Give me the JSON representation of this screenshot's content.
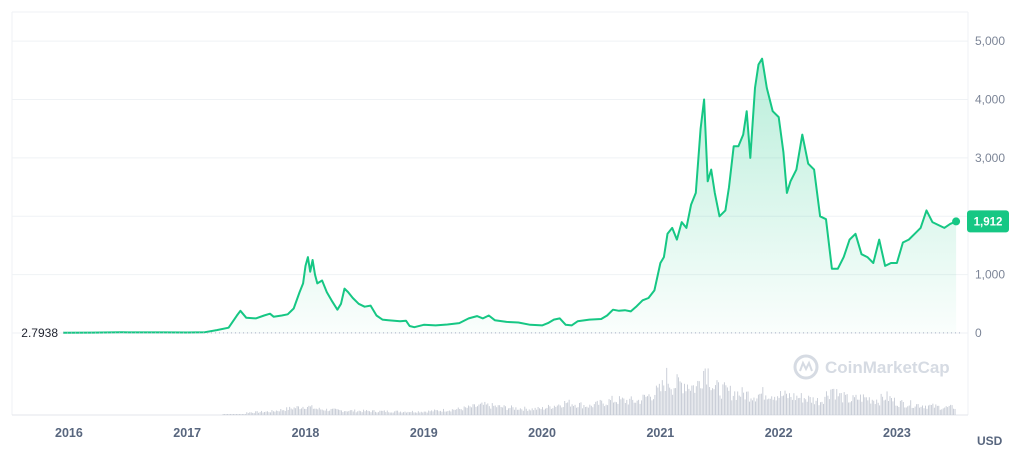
{
  "chart_data": {
    "type": "area",
    "title": "",
    "xlabel": "",
    "ylabel": "",
    "unit": "USD",
    "ylim": [
      0,
      5500
    ],
    "y_ticks": [
      0,
      1000,
      2000,
      3000,
      4000,
      5000
    ],
    "y_tick_labels": [
      "0",
      "1,000",
      "2,000",
      "3,000",
      "4,000",
      "5,000"
    ],
    "xlim": [
      2015.95,
      2023.55
    ],
    "x_ticks": [
      2016,
      2017,
      2018,
      2019,
      2020,
      2021,
      2022,
      2023
    ],
    "x_tick_labels": [
      "2016",
      "2017",
      "2018",
      "2019",
      "2020",
      "2021",
      "2022",
      "2023"
    ],
    "start_value_label": "2.7938",
    "start_value": 2.7938,
    "current_value": 1912,
    "current_value_label": "1,912",
    "grid": true,
    "watermark": "CoinMarketCap",
    "colors": {
      "line": "#16c784",
      "area_top": "#16c784",
      "badge": "#16c784",
      "volume": "#c5cad4",
      "grid": "#eff2f5",
      "tick": "#58667e"
    },
    "series": [
      {
        "points": [
          [
            2015.95,
            2.8
          ],
          [
            2016.2,
            6
          ],
          [
            2016.45,
            12
          ],
          [
            2016.6,
            11
          ],
          [
            2016.8,
            10
          ],
          [
            2017.0,
            8
          ],
          [
            2017.15,
            13
          ],
          [
            2017.25,
            50
          ],
          [
            2017.35,
            90
          ],
          [
            2017.42,
            300
          ],
          [
            2017.45,
            380
          ],
          [
            2017.5,
            260
          ],
          [
            2017.58,
            250
          ],
          [
            2017.65,
            300
          ],
          [
            2017.7,
            330
          ],
          [
            2017.73,
            280
          ],
          [
            2017.8,
            300
          ],
          [
            2017.85,
            320
          ],
          [
            2017.9,
            420
          ],
          [
            2017.95,
            700
          ],
          [
            2017.98,
            850
          ],
          [
            2018.0,
            1150
          ],
          [
            2018.02,
            1300
          ],
          [
            2018.04,
            1050
          ],
          [
            2018.06,
            1250
          ],
          [
            2018.08,
            1000
          ],
          [
            2018.1,
            850
          ],
          [
            2018.14,
            900
          ],
          [
            2018.18,
            700
          ],
          [
            2018.22,
            560
          ],
          [
            2018.27,
            400
          ],
          [
            2018.3,
            500
          ],
          [
            2018.33,
            760
          ],
          [
            2018.36,
            700
          ],
          [
            2018.4,
            600
          ],
          [
            2018.45,
            500
          ],
          [
            2018.5,
            450
          ],
          [
            2018.55,
            470
          ],
          [
            2018.6,
            300
          ],
          [
            2018.65,
            230
          ],
          [
            2018.7,
            220
          ],
          [
            2018.75,
            210
          ],
          [
            2018.8,
            200
          ],
          [
            2018.85,
            210
          ],
          [
            2018.88,
            120
          ],
          [
            2018.92,
            100
          ],
          [
            2019.0,
            140
          ],
          [
            2019.1,
            130
          ],
          [
            2019.2,
            145
          ],
          [
            2019.3,
            170
          ],
          [
            2019.38,
            250
          ],
          [
            2019.45,
            290
          ],
          [
            2019.5,
            250
          ],
          [
            2019.55,
            300
          ],
          [
            2019.6,
            220
          ],
          [
            2019.7,
            190
          ],
          [
            2019.8,
            180
          ],
          [
            2019.9,
            140
          ],
          [
            2020.0,
            130
          ],
          [
            2020.05,
            170
          ],
          [
            2020.1,
            230
          ],
          [
            2020.15,
            250
          ],
          [
            2020.2,
            140
          ],
          [
            2020.25,
            130
          ],
          [
            2020.3,
            200
          ],
          [
            2020.4,
            230
          ],
          [
            2020.5,
            240
          ],
          [
            2020.55,
            300
          ],
          [
            2020.6,
            400
          ],
          [
            2020.65,
            380
          ],
          [
            2020.7,
            390
          ],
          [
            2020.75,
            370
          ],
          [
            2020.8,
            460
          ],
          [
            2020.85,
            560
          ],
          [
            2020.9,
            600
          ],
          [
            2020.95,
            730
          ],
          [
            2021.0,
            1200
          ],
          [
            2021.03,
            1300
          ],
          [
            2021.06,
            1700
          ],
          [
            2021.1,
            1800
          ],
          [
            2021.14,
            1600
          ],
          [
            2021.18,
            1900
          ],
          [
            2021.22,
            1800
          ],
          [
            2021.26,
            2200
          ],
          [
            2021.3,
            2400
          ],
          [
            2021.34,
            3500
          ],
          [
            2021.37,
            4000
          ],
          [
            2021.4,
            2600
          ],
          [
            2021.43,
            2800
          ],
          [
            2021.46,
            2400
          ],
          [
            2021.5,
            2000
          ],
          [
            2021.55,
            2100
          ],
          [
            2021.58,
            2500
          ],
          [
            2021.62,
            3200
          ],
          [
            2021.66,
            3200
          ],
          [
            2021.7,
            3400
          ],
          [
            2021.73,
            3800
          ],
          [
            2021.76,
            3000
          ],
          [
            2021.8,
            4200
          ],
          [
            2021.83,
            4600
          ],
          [
            2021.86,
            4700
          ],
          [
            2021.9,
            4200
          ],
          [
            2021.95,
            3800
          ],
          [
            2022.0,
            3700
          ],
          [
            2022.04,
            3100
          ],
          [
            2022.07,
            2400
          ],
          [
            2022.1,
            2600
          ],
          [
            2022.15,
            2800
          ],
          [
            2022.2,
            3400
          ],
          [
            2022.25,
            2900
          ],
          [
            2022.3,
            2800
          ],
          [
            2022.35,
            2000
          ],
          [
            2022.4,
            1950
          ],
          [
            2022.45,
            1100
          ],
          [
            2022.5,
            1100
          ],
          [
            2022.55,
            1300
          ],
          [
            2022.6,
            1600
          ],
          [
            2022.65,
            1700
          ],
          [
            2022.7,
            1350
          ],
          [
            2022.75,
            1300
          ],
          [
            2022.8,
            1200
          ],
          [
            2022.85,
            1600
          ],
          [
            2022.9,
            1150
          ],
          [
            2022.95,
            1200
          ],
          [
            2023.0,
            1200
          ],
          [
            2023.05,
            1550
          ],
          [
            2023.1,
            1600
          ],
          [
            2023.15,
            1700
          ],
          [
            2023.2,
            1800
          ],
          [
            2023.25,
            2100
          ],
          [
            2023.3,
            1900
          ],
          [
            2023.35,
            1850
          ],
          [
            2023.4,
            1800
          ],
          [
            2023.45,
            1870
          ],
          [
            2023.5,
            1912
          ]
        ]
      }
    ],
    "volume": [
      [
        2017.5,
        0.05
      ],
      [
        2017.7,
        0.07
      ],
      [
        2018.0,
        0.18
      ],
      [
        2018.1,
        0.12
      ],
      [
        2018.3,
        0.09
      ],
      [
        2018.5,
        0.08
      ],
      [
        2018.8,
        0.07
      ],
      [
        2019.0,
        0.07
      ],
      [
        2019.3,
        0.12
      ],
      [
        2019.5,
        0.2
      ],
      [
        2019.7,
        0.15
      ],
      [
        2019.9,
        0.12
      ],
      [
        2020.0,
        0.13
      ],
      [
        2020.2,
        0.25
      ],
      [
        2020.4,
        0.18
      ],
      [
        2020.6,
        0.3
      ],
      [
        2020.8,
        0.28
      ],
      [
        2021.0,
        0.5
      ],
      [
        2021.05,
        0.75
      ],
      [
        2021.1,
        0.6
      ],
      [
        2021.2,
        0.65
      ],
      [
        2021.3,
        0.55
      ],
      [
        2021.38,
        1.0
      ],
      [
        2021.45,
        0.55
      ],
      [
        2021.6,
        0.45
      ],
      [
        2021.8,
        0.4
      ],
      [
        2021.9,
        0.45
      ],
      [
        2022.0,
        0.4
      ],
      [
        2022.2,
        0.35
      ],
      [
        2022.35,
        0.28
      ],
      [
        2022.45,
        0.55
      ],
      [
        2022.5,
        0.4
      ],
      [
        2022.6,
        0.3
      ],
      [
        2022.7,
        0.35
      ],
      [
        2022.85,
        0.3
      ],
      [
        2022.9,
        0.38
      ],
      [
        2023.0,
        0.25
      ],
      [
        2023.2,
        0.2
      ],
      [
        2023.4,
        0.15
      ],
      [
        2023.5,
        0.16
      ]
    ]
  }
}
